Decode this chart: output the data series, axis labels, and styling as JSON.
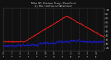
{
  "title": "Milw. Wi. Outdoor Temp / Dew Point by Min. (24 Hours) (Alternate)",
  "background_color": "#111111",
  "plot_bg_color": "#111111",
  "temp_color": "#ff2020",
  "dew_color": "#2020ff",
  "ylabel_color": "#cccccc",
  "xlabel_color": "#cccccc",
  "title_color": "#cccccc",
  "ylim_low": 22,
  "ylim_high": 72,
  "yticks": [
    25,
    30,
    35,
    40,
    45,
    50,
    55,
    60,
    65,
    70
  ],
  "num_points": 1440
}
